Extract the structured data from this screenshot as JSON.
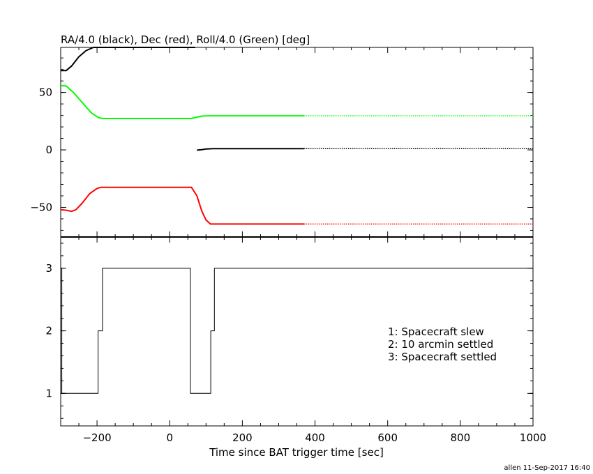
{
  "chart_data": [
    {
      "type": "line",
      "title": "RA/4.0 (black), Dec (red), Roll/4.0 (Green) [deg]",
      "xlim": [
        -300,
        1000
      ],
      "ylim": [
        -75.8,
        89.2
      ],
      "yticks": [
        {
          "v": 50,
          "label": "50"
        },
        {
          "v": 0,
          "label": "0"
        },
        {
          "v": -50,
          "label": "−50"
        }
      ],
      "series": [
        {
          "color": "#000000",
          "points": [
            [
              -300,
              69
            ],
            [
              -285,
              69
            ],
            [
              -270,
              73
            ],
            [
              -250,
              81
            ],
            [
              -230,
              86.5
            ],
            [
              -210,
              89.2
            ],
            [
              70,
              89.2
            ]
          ]
        },
        {
          "color": "#000000",
          "points": [
            [
              75,
              -0.2
            ],
            [
              90,
              0.3
            ],
            [
              100,
              0.8
            ],
            [
              120,
              1.1
            ],
            [
              370,
              1.1
            ]
          ],
          "dotted_points": [
            [
              370,
              1.1
            ],
            [
              1000,
              1.1
            ]
          ]
        },
        {
          "color": "#00ff00",
          "points": [
            [
              -300,
              56
            ],
            [
              -285,
              55.7
            ],
            [
              -265,
              50
            ],
            [
              -240,
              41
            ],
            [
              -215,
              32
            ],
            [
              -195,
              28
            ],
            [
              -185,
              27.3
            ],
            [
              60,
              27.3
            ],
            [
              75,
              28.5
            ],
            [
              90,
              29.5
            ],
            [
              110,
              29.7
            ],
            [
              370,
              29.7
            ]
          ],
          "dotted_points": [
            [
              370,
              29.7
            ],
            [
              1000,
              29.7
            ]
          ]
        },
        {
          "color": "#ff0000",
          "points": [
            [
              -300,
              -52
            ],
            [
              -285,
              -52.5
            ],
            [
              -270,
              -53.5
            ],
            [
              -258,
              -52
            ],
            [
              -240,
              -46
            ],
            [
              -220,
              -38
            ],
            [
              -200,
              -33.5
            ],
            [
              -190,
              -32.6
            ],
            [
              60,
              -32.6
            ],
            [
              75,
              -40
            ],
            [
              88,
              -53
            ],
            [
              100,
              -61
            ],
            [
              112,
              -64.5
            ],
            [
              370,
              -64.5
            ]
          ],
          "dotted_points": [
            [
              370,
              -64.5
            ],
            [
              1000,
              -64.5
            ]
          ]
        }
      ]
    },
    {
      "type": "line",
      "xlabel": "Time since BAT trigger time [sec]",
      "xlim": [
        -300,
        1000
      ],
      "ylim": [
        0.48,
        3.5
      ],
      "xticks": [
        {
          "v": -200,
          "label": "−200"
        },
        {
          "v": 0,
          "label": "0"
        },
        {
          "v": 200,
          "label": "200"
        },
        {
          "v": 400,
          "label": "400"
        },
        {
          "v": 600,
          "label": "600"
        },
        {
          "v": 800,
          "label": "800"
        },
        {
          "v": 1000,
          "label": "1000"
        }
      ],
      "yticks": [
        {
          "v": 3,
          "label": "3"
        },
        {
          "v": 2,
          "label": "2"
        },
        {
          "v": 1,
          "label": "1"
        }
      ],
      "series": [
        {
          "color": "#000000",
          "step_points": [
            [
              -300,
              3
            ],
            [
              -297,
              3
            ],
            [
              -297,
              1
            ],
            [
              -197,
              1
            ],
            [
              -197,
              2
            ],
            [
              -185,
              2
            ],
            [
              -185,
              3
            ],
            [
              57,
              3
            ],
            [
              57,
              1
            ],
            [
              113,
              1
            ],
            [
              113,
              2
            ],
            [
              123,
              2
            ],
            [
              123,
              3
            ],
            [
              1000,
              3
            ]
          ]
        }
      ],
      "annotations": [
        "1: Spacecraft slew",
        "2: 10 arcmin settled",
        "3: Spacecraft settled"
      ]
    }
  ],
  "footer": "allen 11-Sep-2017 16:40"
}
